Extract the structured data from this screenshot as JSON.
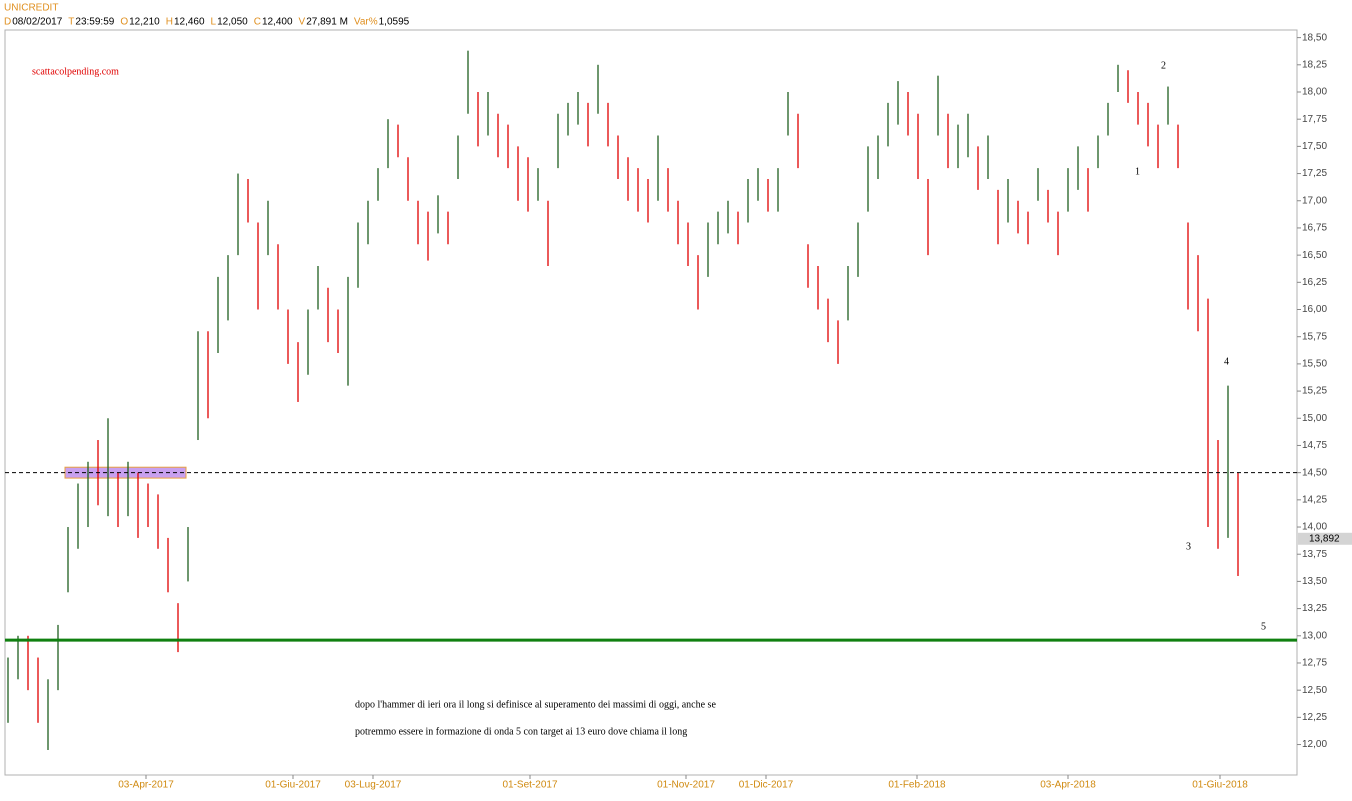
{
  "chart_data": {
    "type": "ohlc",
    "title": "UNICREDIT",
    "header": [
      {
        "key": "D",
        "value": "08/02/2017"
      },
      {
        "key": "T",
        "value": "23:59:59"
      },
      {
        "key": "O",
        "value": "12,210"
      },
      {
        "key": "H",
        "value": "12,460"
      },
      {
        "key": "L",
        "value": "12,050"
      },
      {
        "key": "C",
        "value": "12,400"
      },
      {
        "key": "V",
        "value": "27,891 M"
      },
      {
        "key": "Var%",
        "value": "1,0595"
      }
    ],
    "watermark": "scattacolpending.com",
    "note": [
      "dopo l'hammer di ieri ora il long si definisce al superamento dei massimi di oggi, anche se",
      "potremmo essere in formazione di onda 5 con target ai 13 euro dove chiama il long"
    ],
    "wave_labels": [
      "1",
      "2",
      "3",
      "4",
      "5"
    ],
    "up_color": "#1f5f1f",
    "down_color": "#e00000",
    "open": [
      12.3,
      12.7,
      12.9,
      12.7,
      12.05,
      12.6,
      13.5,
      13.9,
      14.1,
      14.7,
      14.2,
      14.4,
      14.2,
      14.4,
      14.3,
      14.2,
      13.8,
      13.2,
      13.6,
      14.9,
      15.7,
      15.7,
      16.0,
      16.6,
      17.1,
      16.7,
      16.6,
      16.5,
      15.9,
      15.6,
      15.5,
      16.1,
      16.1,
      15.9,
      15.4,
      16.3,
      16.7,
      17.1,
      17.4,
      17.6,
      17.3,
      16.9,
      16.8,
      16.8,
      16.8,
      17.3,
      17.9,
      17.9,
      17.7,
      17.7,
      17.6,
      17.4,
      17.3,
      17.1,
      16.9,
      17.4,
      17.7,
      17.8,
      17.8,
      17.9,
      17.8,
      17.5,
      17.3,
      17.2,
      17.1,
      17.1,
      17.2,
      16.9,
      16.7,
      16.4,
      16.4,
      16.7,
      16.8,
      16.8,
      16.9,
      17.1,
      17.1,
      17.0,
      17.7,
      17.7,
      16.5,
      16.3,
      16.0,
      15.8,
      16.0,
      16.4,
      17.0,
      17.3,
      17.6,
      17.8,
      17.9,
      17.7,
      17.1,
      17.7,
      17.7,
      17.4,
      17.5,
      17.4,
      17.3,
      17.0,
      16.9,
      16.9,
      16.8,
      17.1,
      17.0,
      16.8,
      17.0,
      17.2,
      17.2,
      17.4,
      17.7,
      18.1,
      18.1,
      17.9,
      17.8,
      17.6,
      17.8,
      17.6,
      16.7,
      16.4,
      16.0,
      14.7,
      14.0,
      14.4
    ],
    "high": [
      12.8,
      13.0,
      13.0,
      12.8,
      12.6,
      13.1,
      14.0,
      14.4,
      14.6,
      14.8,
      15.0,
      14.5,
      14.6,
      14.5,
      14.4,
      14.3,
      13.9,
      13.3,
      14.0,
      15.8,
      15.8,
      16.3,
      16.5,
      17.25,
      17.2,
      16.8,
      17.0,
      16.6,
      16.0,
      15.7,
      16.0,
      16.4,
      16.2,
      16.0,
      16.3,
      16.8,
      17.0,
      17.3,
      17.75,
      17.7,
      17.4,
      17.0,
      16.9,
      17.05,
      16.9,
      17.6,
      18.38,
      18.0,
      18.0,
      17.8,
      17.7,
      17.5,
      17.4,
      17.3,
      17.0,
      17.8,
      17.9,
      18.0,
      17.9,
      18.25,
      17.9,
      17.6,
      17.4,
      17.3,
      17.2,
      17.6,
      17.3,
      17.0,
      16.8,
      16.5,
      16.8,
      16.9,
      17.0,
      16.9,
      17.2,
      17.3,
      17.2,
      17.3,
      18.0,
      17.8,
      16.6,
      16.4,
      16.1,
      15.9,
      16.4,
      16.8,
      17.5,
      17.6,
      17.9,
      18.1,
      18.0,
      17.8,
      17.2,
      18.15,
      17.8,
      17.7,
      17.8,
      17.5,
      17.6,
      17.1,
      17.2,
      17.0,
      16.9,
      17.3,
      17.1,
      16.9,
      17.3,
      17.5,
      17.3,
      17.6,
      17.9,
      18.25,
      18.2,
      18.0,
      17.9,
      17.7,
      18.05,
      17.7,
      16.8,
      16.5,
      16.1,
      14.8,
      15.3,
      14.5
    ],
    "low": [
      12.2,
      12.6,
      12.5,
      12.2,
      11.95,
      12.5,
      13.4,
      13.8,
      14.0,
      14.2,
      14.1,
      14.0,
      14.1,
      13.9,
      14.0,
      13.8,
      13.4,
      12.85,
      13.5,
      14.8,
      15.0,
      15.6,
      15.9,
      16.5,
      16.8,
      16.0,
      16.5,
      16.0,
      15.5,
      15.15,
      15.4,
      16.0,
      15.7,
      15.6,
      15.3,
      16.2,
      16.6,
      17.0,
      17.3,
      17.4,
      17.0,
      16.6,
      16.45,
      16.7,
      16.6,
      17.2,
      17.8,
      17.5,
      17.6,
      17.4,
      17.3,
      17.0,
      16.9,
      17.0,
      16.4,
      17.3,
      17.6,
      17.7,
      17.5,
      17.8,
      17.5,
      17.2,
      17.0,
      16.9,
      16.8,
      17.0,
      16.9,
      16.6,
      16.4,
      16.0,
      16.3,
      16.6,
      16.7,
      16.6,
      16.8,
      17.0,
      16.9,
      16.9,
      17.6,
      17.3,
      16.2,
      16.0,
      15.7,
      15.5,
      15.9,
      16.3,
      16.9,
      17.2,
      17.5,
      17.7,
      17.6,
      17.2,
      16.5,
      17.6,
      17.3,
      17.3,
      17.4,
      17.1,
      17.2,
      16.6,
      16.8,
      16.7,
      16.6,
      17.0,
      16.8,
      16.5,
      16.9,
      17.1,
      16.9,
      17.3,
      17.6,
      18.0,
      17.9,
      17.7,
      17.5,
      17.3,
      17.7,
      17.3,
      16.0,
      15.8,
      14.0,
      13.8,
      13.9,
      13.55
    ],
    "close": [
      12.7,
      12.9,
      12.6,
      12.3,
      12.5,
      13.0,
      13.9,
      14.3,
      14.5,
      14.3,
      14.9,
      14.1,
      14.5,
      14.0,
      14.1,
      13.9,
      13.5,
      12.95,
      13.9,
      15.7,
      15.1,
      16.2,
      16.4,
      17.15,
      16.9,
      16.1,
      16.9,
      16.1,
      15.6,
      15.25,
      15.9,
      16.3,
      15.8,
      15.7,
      16.2,
      16.7,
      16.9,
      17.2,
      17.65,
      17.5,
      17.1,
      16.7,
      16.55,
      16.95,
      16.7,
      17.5,
      18.28,
      17.6,
      17.9,
      17.5,
      17.4,
      17.1,
      17.0,
      17.2,
      16.5,
      17.7,
      17.8,
      17.9,
      17.6,
      18.15,
      17.6,
      17.3,
      17.1,
      17.0,
      16.9,
      17.5,
      17.0,
      16.7,
      16.5,
      16.1,
      16.7,
      16.8,
      16.9,
      16.7,
      17.1,
      17.2,
      17.0,
      17.2,
      17.9,
      17.4,
      16.3,
      16.1,
      15.8,
      15.6,
      16.3,
      16.7,
      17.4,
      17.5,
      17.8,
      18.0,
      17.7,
      17.3,
      16.6,
      18.05,
      17.4,
      17.6,
      17.7,
      17.2,
      17.5,
      16.7,
      17.1,
      16.8,
      16.7,
      17.2,
      16.9,
      16.6,
      17.2,
      17.4,
      17.0,
      17.5,
      17.8,
      18.15,
      18.0,
      17.8,
      17.6,
      17.4,
      17.95,
      17.4,
      16.1,
      15.9,
      14.1,
      13.9,
      15.2,
      13.892
    ],
    "last_price": {
      "value": 13.892,
      "label": "13,892",
      "color": "#d4d4d4"
    },
    "levels": [
      {
        "value": 14.5,
        "color": "#000000",
        "dashed": true
      },
      {
        "value": 12.96,
        "color": "#108010",
        "dashed": false
      }
    ],
    "zone": {
      "x": [
        5.7,
        17.8
      ],
      "y": [
        14.45,
        14.55
      ],
      "color": "#c8a0f0",
      "border": "#e8a040"
    },
    "xlim": [
      -0.3,
      128.9
    ],
    "xticks": [
      {
        "value": 13.8,
        "label": "03-Apr-2017"
      },
      {
        "value": 28.5,
        "label": "01-Giu-2017"
      },
      {
        "value": 36.5,
        "label": "03-Lug-2017"
      },
      {
        "value": 52.2,
        "label": "01-Set-2017"
      },
      {
        "value": 67.8,
        "label": "01-Nov-2017"
      },
      {
        "value": 75.8,
        "label": "01-Dic-2017"
      },
      {
        "value": 90.9,
        "label": "01-Feb-2018"
      },
      {
        "value": 106,
        "label": "03-Apr-2018"
      },
      {
        "value": 121.2,
        "label": "01-Giu-2018"
      }
    ],
    "ylim": [
      11.72,
      18.57
    ],
    "yticks": [
      {
        "value": 12,
        "label": "12,00"
      },
      {
        "value": 12.25,
        "label": "12,25"
      },
      {
        "value": 12.5,
        "label": "12,50"
      },
      {
        "value": 12.75,
        "label": "12,75"
      },
      {
        "value": 13,
        "label": "13,00"
      },
      {
        "value": 13.25,
        "label": "13,25"
      },
      {
        "value": 13.5,
        "label": "13,50"
      },
      {
        "value": 13.75,
        "label": "13,75"
      },
      {
        "value": 14,
        "label": "14,00"
      },
      {
        "value": 14.25,
        "label": "14,25"
      },
      {
        "value": 14.5,
        "label": "14,50"
      },
      {
        "value": 14.75,
        "label": "14,75"
      },
      {
        "value": 15,
        "label": "15,00"
      },
      {
        "value": 15.25,
        "label": "15,25"
      },
      {
        "value": 15.5,
        "label": "15,50"
      },
      {
        "value": 15.75,
        "label": "15,75"
      },
      {
        "value": 16,
        "label": "16,00"
      },
      {
        "value": 16.25,
        "label": "16,25"
      },
      {
        "value": 16.5,
        "label": "16,50"
      },
      {
        "value": 16.75,
        "label": "16,75"
      },
      {
        "value": 17,
        "label": "17,00"
      },
      {
        "value": 17.25,
        "label": "17,25"
      },
      {
        "value": 17.5,
        "label": "17,50"
      },
      {
        "value": 17.75,
        "label": "17,75"
      },
      {
        "value": 18,
        "label": "18,00"
      },
      {
        "value": 18.25,
        "label": "18,25"
      },
      {
        "value": 18.5,
        "label": "18,50"
      }
    ]
  }
}
